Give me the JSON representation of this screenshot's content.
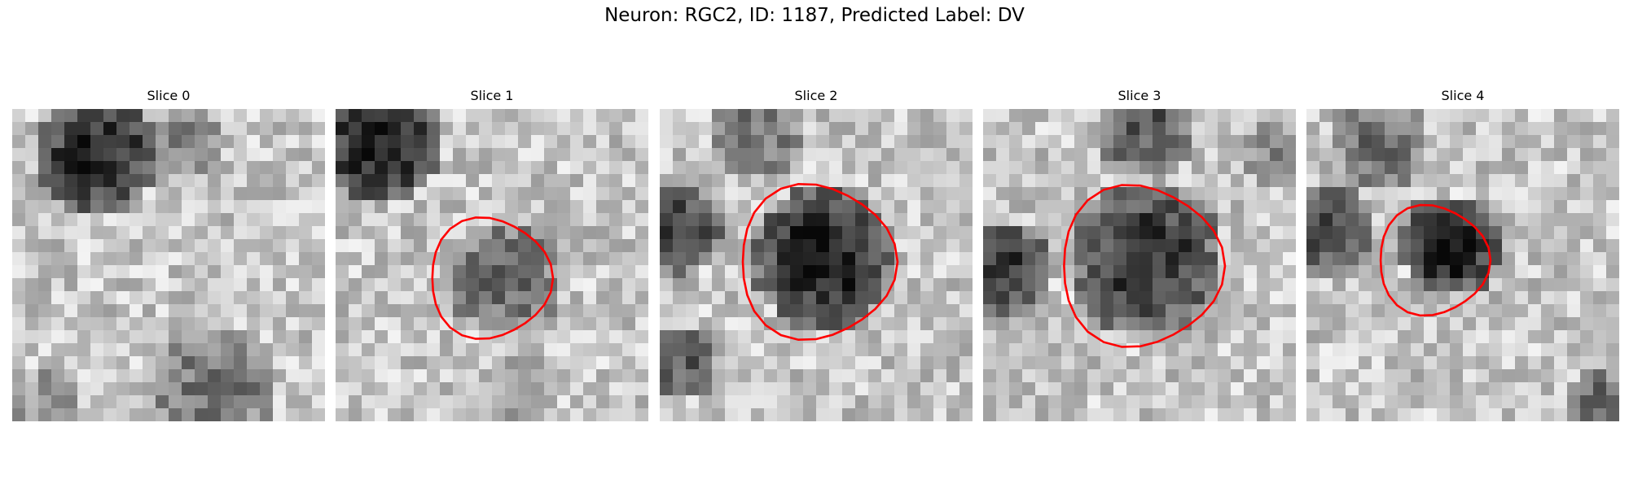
{
  "figure": {
    "title": "Neuron: RGC2, ID: 1187, Predicted Label: DV",
    "contour_color": "#ff0000"
  },
  "panels": [
    {
      "title": "Slice 0",
      "has_contour": false,
      "darkness_level": 0.25
    },
    {
      "title": "Slice 1",
      "has_contour": true,
      "darkness_level": 0.45
    },
    {
      "title": "Slice 2",
      "has_contour": true,
      "darkness_level": 0.75
    },
    {
      "title": "Slice 3",
      "has_contour": true,
      "darkness_level": 0.7
    },
    {
      "title": "Slice 4",
      "has_contour": true,
      "darkness_level": 0.85
    }
  ]
}
